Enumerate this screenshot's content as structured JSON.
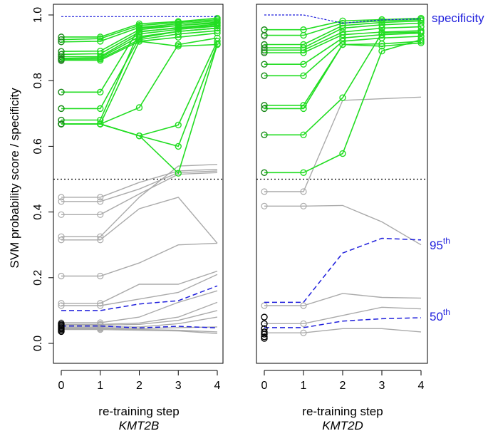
{
  "colors": {
    "green": "#22dd22",
    "grey": "#aaaaaa",
    "blue": "#1f1fdc",
    "black": "#000000",
    "threshold": "#000000"
  },
  "chart_data": [
    {
      "type": "line",
      "panel": "left",
      "title": "",
      "xlabel": "re-training step",
      "gene": "KMT2B",
      "ylabel": "SVM probability score / specificity",
      "x": [
        0,
        1,
        2,
        3,
        4
      ],
      "x_tick_labels": [
        "0",
        "1",
        "2",
        "3",
        "4"
      ],
      "y_tick_labels": [
        "0.0",
        "0.2",
        "0.4",
        "0.6",
        "0.8",
        "1.0"
      ],
      "y_ticks": [
        0,
        0.2,
        0.4,
        0.6,
        0.8,
        1.0
      ],
      "ylim": [
        0,
        1
      ],
      "threshold": 0.5,
      "green_series": [
        [
          0.933,
          0.933,
          0.973,
          0.98,
          0.99
        ],
        [
          0.925,
          0.928,
          0.968,
          0.977,
          0.986
        ],
        [
          0.918,
          0.92,
          0.962,
          0.973,
          0.982
        ],
        [
          0.889,
          0.89,
          0.955,
          0.968,
          0.978
        ],
        [
          0.88,
          0.882,
          0.948,
          0.962,
          0.972
        ],
        [
          0.873,
          0.873,
          0.942,
          0.956,
          0.966
        ],
        [
          0.868,
          0.87,
          0.934,
          0.95,
          0.96
        ],
        [
          0.865,
          0.866,
          0.925,
          0.942,
          0.952
        ],
        [
          0.862,
          0.862,
          0.92,
          0.932,
          0.945
        ],
        [
          0.765,
          0.765,
          0.96,
          0.968,
          0.975
        ],
        [
          0.715,
          0.715,
          0.93,
          0.95,
          0.96
        ],
        [
          0.68,
          0.68,
          0.95,
          0.96,
          0.968
        ],
        [
          0.668,
          0.668,
          0.92,
          0.905,
          0.91
        ],
        [
          0.668,
          0.668,
          0.718,
          0.91,
          0.93
        ],
        [
          0.668,
          0.668,
          0.632,
          0.665,
          0.92
        ],
        [
          0.668,
          0.668,
          0.632,
          0.6,
          0.912
        ],
        [
          0.668,
          0.668,
          0.632,
          0.518,
          0.91
        ]
      ],
      "grey_series": [
        [
          0.445,
          0.445,
          0.49,
          0.525,
          0.53
        ],
        [
          0.432,
          0.432,
          0.47,
          0.52,
          0.525
        ],
        [
          0.392,
          0.392,
          0.455,
          0.515,
          0.52
        ],
        [
          0.325,
          0.325,
          0.445,
          0.54,
          0.545
        ],
        [
          0.315,
          0.315,
          0.41,
          0.445,
          0.305
        ],
        [
          0.205,
          0.205,
          0.245,
          0.3,
          0.305
        ],
        [
          0.122,
          0.122,
          0.18,
          0.18,
          0.22
        ],
        [
          0.115,
          0.115,
          0.135,
          0.155,
          0.21
        ],
        [
          0.063,
          0.063,
          0.08,
          0.125,
          0.16
        ],
        [
          0.058,
          0.058,
          0.062,
          0.08,
          0.125
        ],
        [
          0.055,
          0.055,
          0.058,
          0.07,
          0.1
        ],
        [
          0.05,
          0.05,
          0.05,
          0.06,
          0.08
        ],
        [
          0.047,
          0.047,
          0.045,
          0.048,
          0.05
        ],
        [
          0.045,
          0.045,
          0.042,
          0.04,
          0.035
        ],
        [
          0.042,
          0.042,
          0.04,
          0.038,
          0.03
        ]
      ],
      "grey_start_extra": [
        0.86,
        0.765,
        0.715,
        0.68,
        0.668
      ],
      "black_markers": [
        0.06,
        0.056,
        0.052,
        0.048,
        0.044,
        0.04,
        0.036
      ],
      "percentile_95": [
        0.1,
        0.1,
        0.12,
        0.13,
        0.175
      ],
      "percentile_50": [
        0.053,
        0.053,
        0.047,
        0.052,
        0.047
      ],
      "specificity": [
        0.995,
        0.995,
        0.995,
        0.995,
        0.995
      ]
    },
    {
      "type": "line",
      "panel": "right",
      "title": "",
      "xlabel": "re-training step",
      "gene": "KMT2D",
      "x": [
        0,
        1,
        2,
        3,
        4
      ],
      "x_tick_labels": [
        "0",
        "1",
        "2",
        "3",
        "4"
      ],
      "ylim": [
        0,
        1
      ],
      "threshold": 0.5,
      "green_series": [
        [
          0.955,
          0.955,
          0.982,
          0.986,
          0.99
        ],
        [
          0.938,
          0.938,
          0.975,
          0.982,
          0.986
        ],
        [
          0.91,
          0.91,
          0.968,
          0.977,
          0.982
        ],
        [
          0.9,
          0.9,
          0.96,
          0.97,
          0.975
        ],
        [
          0.893,
          0.893,
          0.948,
          0.96,
          0.964
        ],
        [
          0.885,
          0.885,
          0.94,
          0.948,
          0.952
        ],
        [
          0.85,
          0.85,
          0.93,
          0.94,
          0.945
        ],
        [
          0.815,
          0.815,
          0.92,
          0.93,
          0.935
        ],
        [
          0.725,
          0.725,
          0.91,
          0.912,
          0.92
        ],
        [
          0.715,
          0.715,
          0.91,
          0.905,
          0.915
        ],
        [
          0.635,
          0.635,
          0.748,
          0.945,
          0.948
        ],
        [
          0.52,
          0.52,
          0.578,
          0.89,
          0.925
        ]
      ],
      "grey_series": [
        [
          0.462,
          0.462,
          0.74,
          0.745,
          0.75
        ],
        [
          0.418,
          0.418,
          0.42,
          0.37,
          0.3
        ],
        [
          0.115,
          0.115,
          0.152,
          0.14,
          0.138
        ],
        [
          0.06,
          0.06,
          0.085,
          0.11,
          0.105
        ],
        [
          0.032,
          0.032,
          0.045,
          0.045,
          0.035
        ]
      ],
      "grey_start_extra": [
        0.955,
        0.935,
        0.91,
        0.888,
        0.815,
        0.725,
        0.715,
        0.635,
        0.52
      ],
      "black_markers": [
        0.08,
        0.06,
        0.045,
        0.035,
        0.028,
        0.02,
        0.015
      ],
      "percentile_95": [
        0.125,
        0.125,
        0.275,
        0.32,
        0.315
      ],
      "percentile_50": [
        0.048,
        0.048,
        0.068,
        0.075,
        0.078
      ],
      "specificity": [
        1.0,
        1.0,
        0.975,
        0.985,
        0.988
      ]
    }
  ],
  "annotations": {
    "specificity": "specificity",
    "p95_base": "95",
    "p95_sup": "th",
    "p50_base": "50",
    "p50_sup": "th"
  }
}
